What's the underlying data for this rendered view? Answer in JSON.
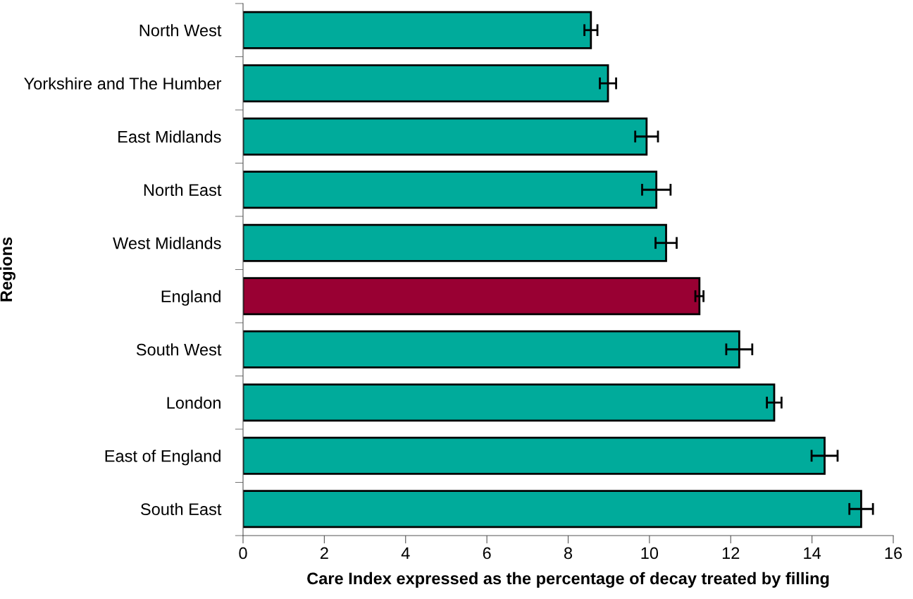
{
  "chart_data": {
    "type": "bar",
    "orientation": "horizontal",
    "xlabel": "Care Index expressed as the percentage of decay treated by filling",
    "ylabel": "Regions",
    "categories": [
      "North West",
      "Yorkshire and The Humber",
      "East Midlands",
      "North East",
      "West Midlands",
      "England",
      "South West",
      "London",
      "East of England",
      "South East"
    ],
    "values": [
      8.56,
      8.98,
      9.93,
      10.17,
      10.41,
      11.23,
      12.21,
      13.07,
      14.31,
      15.21
    ],
    "errors": [
      0.16,
      0.2,
      0.28,
      0.35,
      0.26,
      0.1,
      0.32,
      0.18,
      0.32,
      0.29
    ],
    "colors": [
      "#00ab9b",
      "#00ab9b",
      "#00ab9b",
      "#00ab9b",
      "#00ab9b",
      "#990033",
      "#00ab9b",
      "#00ab9b",
      "#00ab9b",
      "#00ab9b"
    ],
    "xlim": [
      0,
      16
    ],
    "xticks": [
      0,
      2,
      4,
      6,
      8,
      10,
      12,
      14,
      16
    ],
    "grid": false,
    "legend": false
  }
}
